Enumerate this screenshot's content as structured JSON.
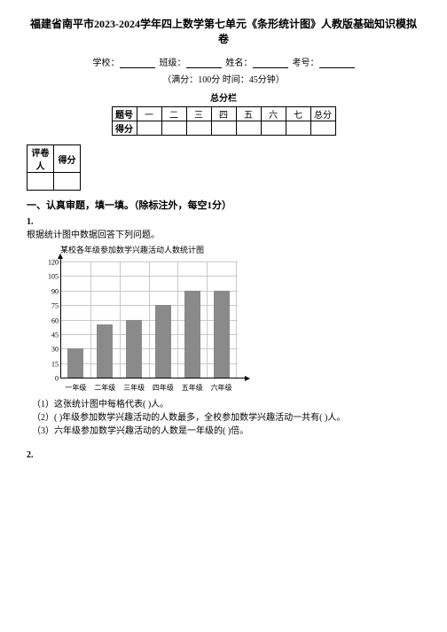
{
  "title": "福建省南平市2023-2024学年四上数学第七单元《条形统计图》人教版基础知识模拟卷",
  "info": {
    "school_label": "学校：",
    "class_label": "班级：",
    "name_label": "姓名：",
    "exam_no_label": "考号：",
    "full_score_time": "（满分：100分 时间：45分钟）",
    "score_box_label": "总分栏"
  },
  "score_table": {
    "row_label_1": "题号",
    "cols": [
      "一",
      "二",
      "三",
      "四",
      "五",
      "六",
      "七",
      "总分"
    ],
    "row_label_2": "得分"
  },
  "grader_table": {
    "h1": "评卷人",
    "h2": "得分"
  },
  "section1": "一、认真审题，填一填。（除标注外，每空1分）",
  "q1": {
    "num": "1.",
    "intro": "根据统计图中数据回答下列问题。",
    "chart_title": "某校各年级参加数学兴趣活动人数统计图",
    "y_ticks": [
      0,
      15,
      30,
      45,
      60,
      75,
      90,
      105,
      120
    ],
    "x_labels": [
      "一年级",
      "二年级",
      "三年级",
      "四年级",
      "五年级",
      "六年级"
    ],
    "bar_values": [
      30,
      55,
      60,
      75,
      90,
      90
    ],
    "y_max": 120,
    "bar_color": "#8a8a8a",
    "grid_color": "#c9c9c9",
    "sub1": "（1）这张统计图中每格代表(        )人。",
    "sub2": "（2）(        )年级参加数学兴趣活动的人数最多，全校参加数学兴趣活动一共有(        )人。",
    "sub3": "（3）六年级参加数学兴趣活动的人数是一年级的(        )倍。"
  },
  "q2": {
    "num": "2."
  }
}
